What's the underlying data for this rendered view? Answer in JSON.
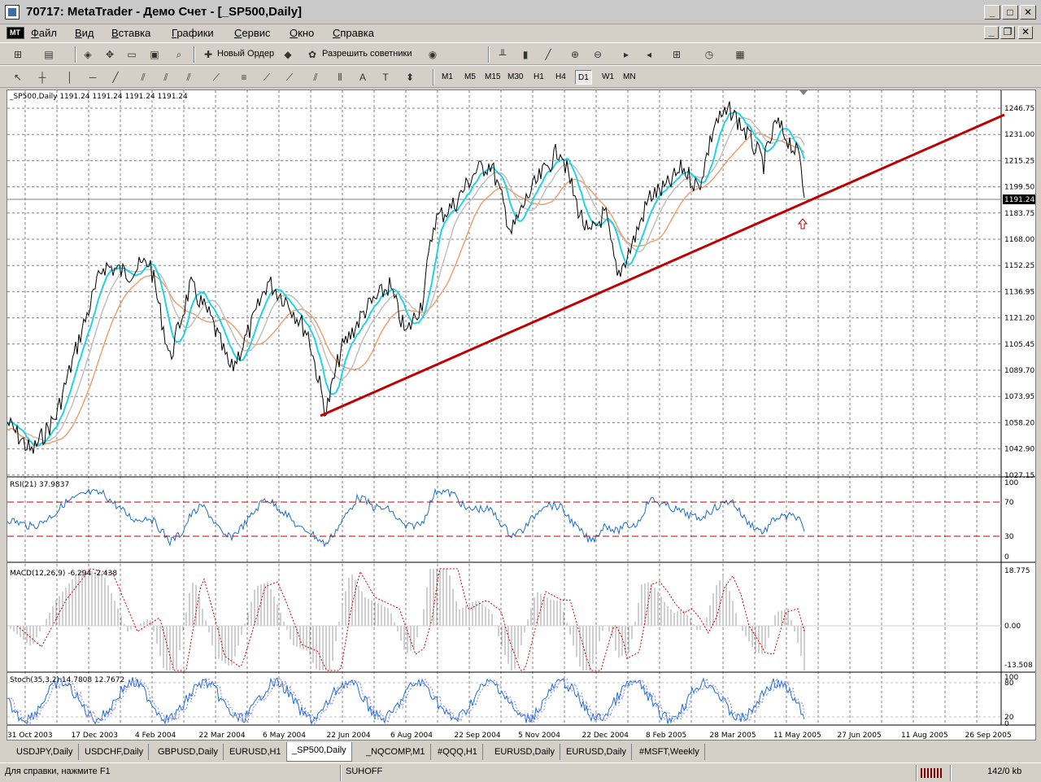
{
  "window": {
    "title": "70717: MetaTrader - Демо Счет - [_SP500,Daily]"
  },
  "menu": [
    "Файл",
    "Вид",
    "Вставка",
    "Графики",
    "Сервис",
    "Окно",
    "Справка"
  ],
  "toolbar": {
    "new_order": "Новый Ордер",
    "allow_experts": "Разрешить советники"
  },
  "timeframes": [
    "M1",
    "M5",
    "M15",
    "M30",
    "H1",
    "H4",
    "D1",
    "W1",
    "MN"
  ],
  "active_timeframe": "D1",
  "chart": {
    "symbol_info": "_SP500,Daily  1191.24 1191.24 1191.24 1191.24",
    "current_price": "1191.24",
    "price_labels": [
      "1246.75",
      "1231.00",
      "1215.25",
      "1199.50",
      "1183.75",
      "1168.00",
      "1152.25",
      "1136.95",
      "1121.20",
      "1105.45",
      "1089.70",
      "1073.95",
      "1058.20",
      "1042.90",
      "1027.15"
    ],
    "date_labels": [
      "31 Oct 2003",
      "17 Dec 2003",
      "4 Feb 2004",
      "22 Mar 2004",
      "6 May 2004",
      "22 Jun 2004",
      "6 Aug 2004",
      "22 Sep 2004",
      "5 Nov 2004",
      "22 Dec 2004",
      "8 Feb 2005",
      "28 Mar 2005",
      "11 May 2005",
      "27 Jun 2005",
      "11 Aug 2005",
      "26 Sep 2005"
    ],
    "rsi": {
      "label": "RSI(21) 37.9837",
      "levels": [
        "100",
        "70",
        "30",
        "0"
      ]
    },
    "macd": {
      "label": "MACD(12,26,9) -6.294 -2.438",
      "levels": [
        "18.775",
        "0.00",
        "-13.508"
      ]
    },
    "stoch": {
      "label": "Stoch(35,3,2) 14.7808 12.7672",
      "levels": [
        "100",
        "80",
        "20",
        "0"
      ]
    },
    "colors": {
      "price": "#000000",
      "ma_fast": "#22d3e6",
      "ma_mid": "#c0c0c0",
      "ma_slow": "#f0a070",
      "trendline": "#c00000"
    }
  },
  "tabs": [
    "USDJPY,Daily",
    "USDCHF,Daily",
    "GBPUSD,Daily",
    "EURUSD,H1",
    "_SP500,Daily",
    "_NQCOMP,M1",
    "#QQQ,H1",
    "EURUSD,Daily",
    "EURUSD,Daily",
    "#MSFT,Weekly"
  ],
  "active_tab": "_SP500,Daily",
  "status": {
    "help": "Для справки, нажмите F1",
    "profile": "SUHOFF",
    "traffic": "142/0 kb"
  }
}
